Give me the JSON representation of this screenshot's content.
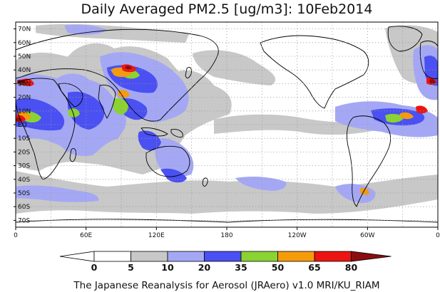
{
  "title": "Daily Averaged PM2.5 [ug/m3]: 10Feb2014",
  "footer": "The Japanese Reanalysis for Aerosol (JRAero) v1.0 MRI/KU_RIAM",
  "lat_labels": [
    "70N",
    "60N",
    "50N",
    "40N",
    "30N",
    "20N",
    "10N",
    "EQ",
    "10S",
    "20S",
    "30S",
    "40S",
    "50S",
    "60S",
    "70S"
  ],
  "lon_labels": [
    "0",
    "60E",
    "120E",
    "180",
    "120W",
    "60W",
    "0"
  ],
  "colorbar": {
    "levels": [
      "0",
      "5",
      "10",
      "20",
      "35",
      "50",
      "65",
      "80"
    ],
    "colors": [
      "#ffffff",
      "#c8c8c8",
      "#a4a8f4",
      "#4a50f2",
      "#8ad332",
      "#f59b0c",
      "#ec1410",
      "#8a0e10"
    ]
  },
  "field_colors": {
    "gray": "#c8c8c8",
    "light_blue": "#a4a8f4",
    "blue": "#4a50f2",
    "green": "#8ad332",
    "orange": "#f59b0c",
    "red": "#ec1410",
    "dark_red": "#8a0e10"
  }
}
